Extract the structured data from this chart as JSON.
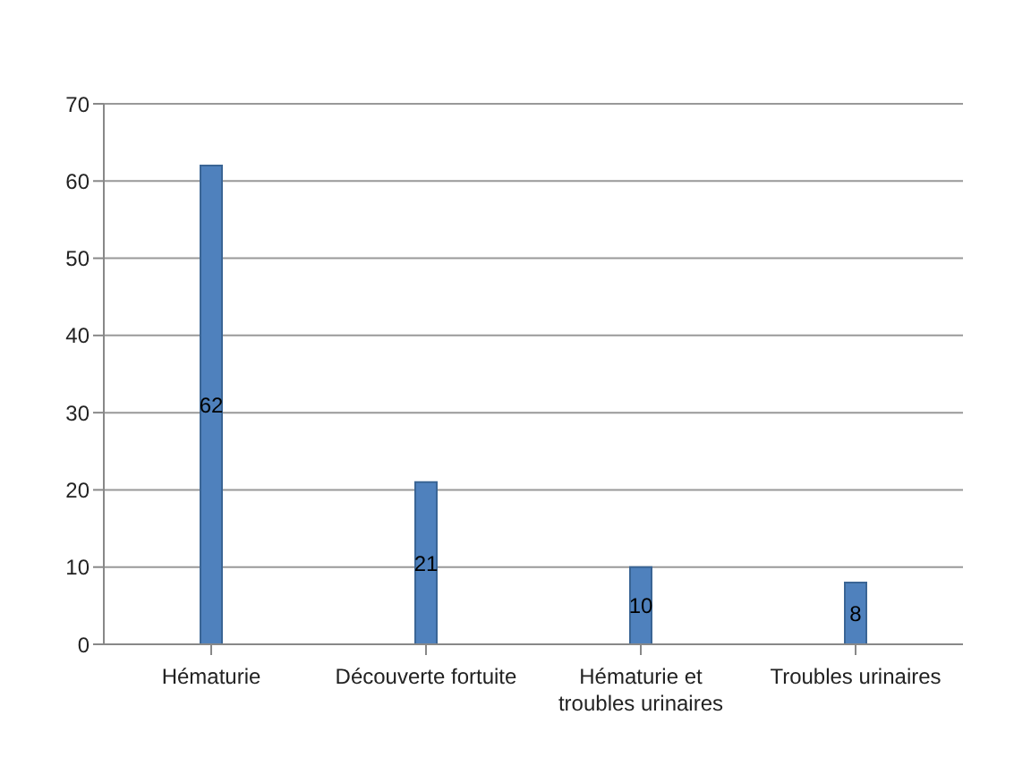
{
  "chart_data": {
    "type": "bar",
    "categories": [
      "Hématurie",
      "Découverte fortuite",
      "Hématurie et troubles urinaires",
      "Troubles urinaires"
    ],
    "values": [
      62,
      21,
      10,
      8
    ],
    "color": "#4f81bd",
    "ylim": [
      0,
      70
    ],
    "yticks": [
      0,
      10,
      20,
      30,
      40,
      50,
      60,
      70
    ],
    "grid": "y",
    "data_labels": true
  }
}
